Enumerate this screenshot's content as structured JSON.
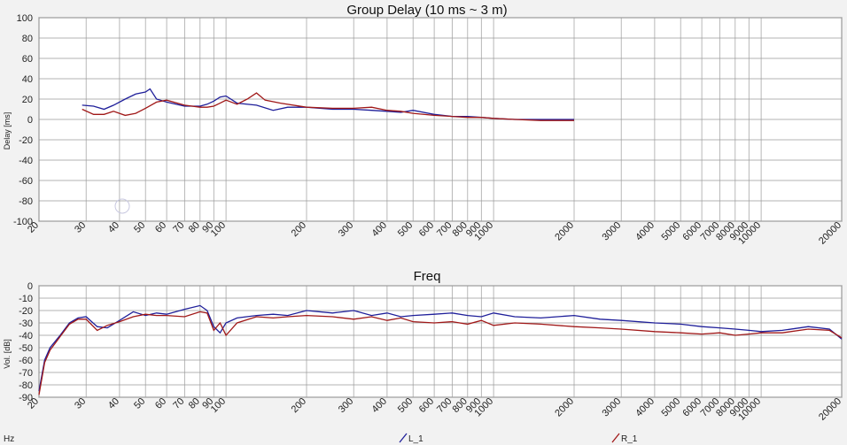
{
  "footer": {
    "unit": "Hz",
    "legend_l": "L_1",
    "legend_r": "R_1"
  },
  "colors": {
    "L_1": "#1f1f9a",
    "R_1": "#a01818",
    "grid": "#9a9a9a",
    "plot_bg": "#ffffff",
    "page_bg": "#f2f2f2"
  },
  "chart_data": [
    {
      "type": "line",
      "title": "Group Delay (10 ms ~ 3 m)",
      "ylabel": "Delay [ms]",
      "xscale": "log",
      "xlim": [
        20,
        20000
      ],
      "ylim": [
        -100,
        100
      ],
      "x_tick_labels": [
        "20",
        "30",
        "40",
        "50",
        "60",
        "70",
        "80",
        "90",
        "100",
        "200",
        "300",
        "400",
        "500",
        "600",
        "700",
        "800",
        "900",
        "1000",
        "2000",
        "3000",
        "4000",
        "5000",
        "6000",
        "7000",
        "8000",
        "9000",
        "10000",
        "20000"
      ],
      "y_tick_labels": [
        "100",
        "80",
        "60",
        "40",
        "20",
        "0",
        "-20",
        "-40",
        "-60",
        "-80",
        "-100"
      ],
      "legend": "bottom",
      "series": [
        {
          "name": "L_1",
          "x": [
            29,
            32,
            35,
            38,
            42,
            46,
            50,
            52,
            55,
            60,
            70,
            80,
            85,
            90,
            95,
            100,
            110,
            130,
            150,
            170,
            200,
            250,
            300,
            350,
            400,
            450,
            500,
            600,
            700,
            800,
            900,
            1000,
            1200,
            1500,
            2000
          ],
          "y": [
            14,
            13,
            10,
            14,
            20,
            25,
            27,
            30,
            20,
            17,
            13,
            13,
            15,
            18,
            22,
            23,
            16,
            14,
            9,
            12,
            12,
            10,
            10,
            9,
            8,
            7,
            9,
            5,
            3,
            3,
            2,
            1,
            0,
            0,
            0
          ]
        },
        {
          "name": "R_1",
          "x": [
            29,
            32,
            35,
            38,
            42,
            46,
            50,
            55,
            60,
            70,
            80,
            85,
            90,
            95,
            100,
            110,
            120,
            130,
            140,
            160,
            200,
            250,
            300,
            350,
            400,
            450,
            500,
            600,
            700,
            800,
            900,
            1000,
            1200,
            1500,
            2000
          ],
          "y": [
            10,
            5,
            5,
            8,
            4,
            6,
            11,
            17,
            19,
            14,
            12,
            12,
            13,
            16,
            19,
            15,
            20,
            26,
            19,
            16,
            12,
            11,
            11,
            12,
            9,
            8,
            6,
            4,
            3,
            2,
            2,
            1,
            0,
            -1,
            -1
          ]
        }
      ]
    },
    {
      "type": "line",
      "title": "Freq",
      "ylabel": "Vol. [dB]",
      "xscale": "log",
      "xlim": [
        20,
        20000
      ],
      "ylim": [
        -90,
        0
      ],
      "x_tick_labels": [
        "20",
        "30",
        "40",
        "50",
        "60",
        "70",
        "80",
        "90",
        "100",
        "200",
        "300",
        "400",
        "500",
        "600",
        "700",
        "800",
        "900",
        "1000",
        "2000",
        "3000",
        "4000",
        "5000",
        "6000",
        "7000",
        "8000",
        "9000",
        "10000",
        "20000"
      ],
      "y_tick_labels": [
        "0",
        "-10",
        "-20",
        "-30",
        "-40",
        "-50",
        "-60",
        "-70",
        "-80",
        "-90"
      ],
      "legend": "bottom",
      "series": [
        {
          "name": "L_1",
          "x": [
            20,
            21,
            22,
            24,
            26,
            28,
            30,
            33,
            36,
            40,
            45,
            50,
            55,
            60,
            70,
            80,
            85,
            90,
            95,
            100,
            110,
            130,
            150,
            170,
            200,
            250,
            300,
            350,
            400,
            450,
            500,
            600,
            700,
            800,
            900,
            1000,
            1200,
            1500,
            2000,
            2500,
            3000,
            4000,
            5000,
            6000,
            7000,
            8000,
            9000,
            10000,
            12000,
            15000,
            18000,
            20000
          ],
          "y": [
            -85,
            -60,
            -50,
            -40,
            -30,
            -26,
            -25,
            -33,
            -34,
            -28,
            -21,
            -24,
            -22,
            -23,
            -19,
            -16,
            -20,
            -33,
            -38,
            -30,
            -26,
            -24,
            -23,
            -24,
            -20,
            -22,
            -20,
            -24,
            -22,
            -25,
            -24,
            -23,
            -22,
            -24,
            -25,
            -22,
            -25,
            -26,
            -24,
            -27,
            -28,
            -30,
            -31,
            -33,
            -34,
            -35,
            -36,
            -37,
            -36,
            -33,
            -35,
            -43
          ]
        },
        {
          "name": "R_1",
          "x": [
            20,
            21,
            22,
            24,
            26,
            28,
            30,
            33,
            36,
            40,
            45,
            50,
            55,
            60,
            70,
            80,
            85,
            90,
            95,
            100,
            110,
            130,
            150,
            170,
            200,
            250,
            300,
            350,
            400,
            450,
            500,
            600,
            700,
            800,
            900,
            1000,
            1200,
            1500,
            2000,
            2500,
            3000,
            4000,
            5000,
            6000,
            7000,
            8000,
            9000,
            10000,
            12000,
            15000,
            18000,
            20000
          ],
          "y": [
            -88,
            -62,
            -52,
            -41,
            -31,
            -27,
            -27,
            -36,
            -32,
            -29,
            -25,
            -23,
            -24,
            -24,
            -25,
            -21,
            -22,
            -36,
            -30,
            -40,
            -30,
            -25,
            -26,
            -25,
            -24,
            -25,
            -27,
            -25,
            -28,
            -26,
            -29,
            -30,
            -29,
            -31,
            -28,
            -32,
            -30,
            -31,
            -33,
            -34,
            -35,
            -37,
            -38,
            -39,
            -38,
            -40,
            -39,
            -38,
            -38,
            -35,
            -36,
            -42
          ]
        }
      ]
    }
  ]
}
